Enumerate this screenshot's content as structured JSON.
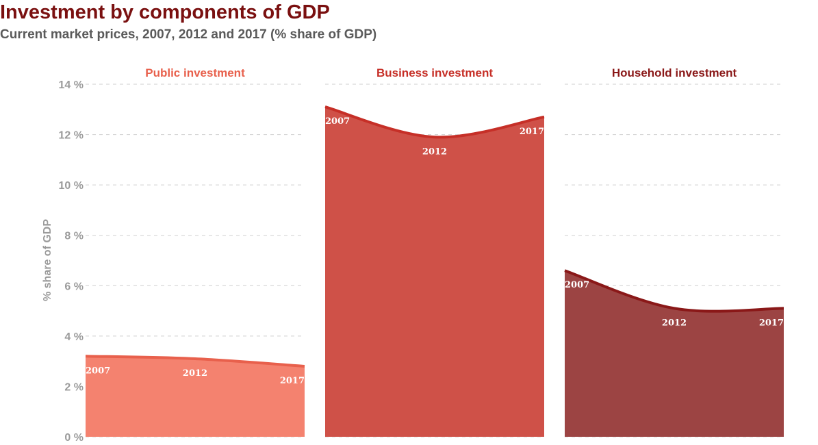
{
  "title": "Investment by components of GDP",
  "subtitle": "Current market prices, 2007, 2012 and 2017 (% share of GDP)",
  "chart_data": {
    "type": "area",
    "ylabel": "% share of GDP",
    "ylim": [
      0,
      14
    ],
    "yticks": [
      0,
      2,
      4,
      6,
      8,
      10,
      12,
      14
    ],
    "ytick_labels": [
      "0 %",
      "2 %",
      "4 %",
      "6 %",
      "8 %",
      "10 %",
      "12 %",
      "14 %"
    ],
    "grid": true,
    "x": [
      "2007",
      "2012",
      "2017"
    ],
    "panels": [
      {
        "title": "Public investment",
        "values": [
          3.2,
          3.1,
          2.8
        ],
        "fill": "#f4826f",
        "line": "#e8604c",
        "title_color": "#e8604c"
      },
      {
        "title": "Business investment",
        "values": [
          13.1,
          11.9,
          12.7
        ],
        "fill": "#cf5148",
        "line": "#c62f27",
        "title_color": "#c62f27"
      },
      {
        "title": "Household investment",
        "values": [
          6.6,
          5.1,
          5.1
        ],
        "fill": "#9c4443",
        "line": "#8a1818",
        "title_color": "#8a1818"
      }
    ]
  }
}
